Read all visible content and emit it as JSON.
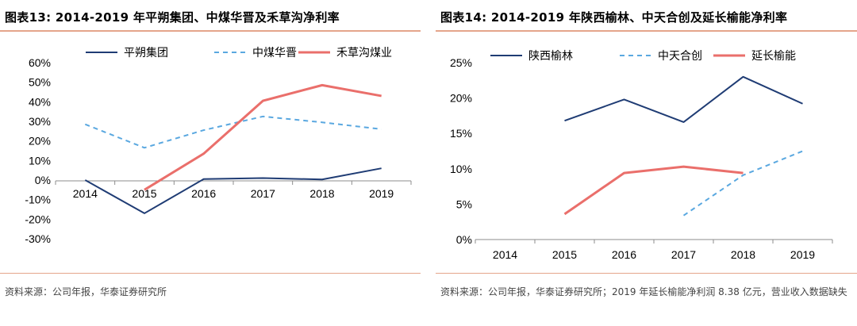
{
  "chart_data": [
    {
      "type": "line",
      "title": "图表13:    2014-2019 年平朔集团、中煤华晋及禾草沟净利率",
      "x": [
        "2014",
        "2015",
        "2016",
        "2017",
        "2018",
        "2019"
      ],
      "y_ticks": [
        "60%",
        "50%",
        "40%",
        "30%",
        "20%",
        "10%",
        "0%",
        "-10%",
        "-20%",
        "-30%"
      ],
      "ylim": [
        -30,
        60
      ],
      "grid": false,
      "legend_position": "top",
      "series": [
        {
          "name": "平朔集团",
          "style": "solid",
          "color": "#1f3c74",
          "values": [
            0,
            -17,
            0.5,
            1,
            0.3,
            6
          ]
        },
        {
          "name": "中煤华晋",
          "style": "dashed",
          "color": "#5aa8e0",
          "values": [
            28.5,
            16.5,
            25.5,
            32.5,
            29.5,
            26
          ]
        },
        {
          "name": "禾草沟煤业",
          "style": "solid",
          "color": "#ea6f6b",
          "values": [
            null,
            -5,
            13.5,
            40.5,
            48.5,
            43
          ]
        }
      ],
      "source": "资料来源：公司年报，华泰证券研究所"
    },
    {
      "type": "line",
      "title": "图表14:    2014-2019 年陕西榆林、中天合创及延长榆能净利率",
      "x": [
        "2014",
        "2015",
        "2016",
        "2017",
        "2018",
        "2019"
      ],
      "y_ticks": [
        "25%",
        "20%",
        "15%",
        "10%",
        "5%",
        "0%"
      ],
      "ylim": [
        0,
        25
      ],
      "grid": false,
      "legend_position": "top",
      "series": [
        {
          "name": "陕西榆林",
          "style": "solid",
          "color": "#1f3c74",
          "values": [
            null,
            16.8,
            19.8,
            16.6,
            23,
            19.2
          ]
        },
        {
          "name": "中天合创",
          "style": "dashed",
          "color": "#5aa8e0",
          "values": [
            null,
            null,
            null,
            3.4,
            9.1,
            12.5
          ]
        },
        {
          "name": "延长榆能",
          "style": "solid",
          "color": "#ea6f6b",
          "values": [
            null,
            3.6,
            9.4,
            10.3,
            9.4,
            null
          ]
        }
      ],
      "source": "资料来源：公司年报，华泰证券研究所；2019 年延长榆能净利润 8.38 亿元，营业收入数据缺失"
    }
  ]
}
